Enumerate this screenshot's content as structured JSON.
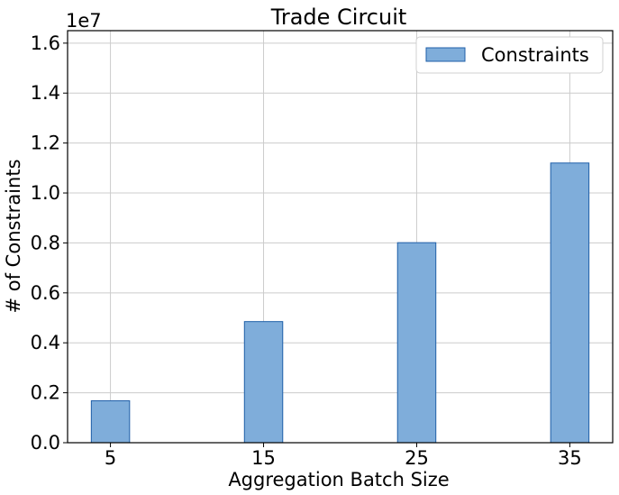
{
  "chart_data": {
    "type": "bar",
    "title": "Trade Circuit",
    "xlabel": "Aggregation Batch Size",
    "ylabel": "# of Constraints",
    "y_scale_label": "1e7",
    "categories": [
      "5",
      "15",
      "25",
      "35"
    ],
    "x": [
      5,
      15,
      25,
      35
    ],
    "xlim": [
      2.2,
      37.8
    ],
    "series": [
      {
        "name": "Constraints",
        "values": [
          1680000,
          4850000,
          8010000,
          11200000
        ]
      }
    ],
    "ylim": [
      0,
      16500000
    ],
    "yticks": [
      0,
      2000000,
      4000000,
      6000000,
      8000000,
      10000000,
      12000000,
      14000000,
      16000000
    ],
    "ytick_labels": [
      "0.0",
      "0.2",
      "0.4",
      "0.6",
      "0.8",
      "1.0",
      "1.2",
      "1.4",
      "1.6"
    ],
    "grid": true,
    "legend_position": "top-right",
    "colors": {
      "bar_fill": "#7fadda",
      "bar_edge": "#1f5fa8"
    }
  }
}
